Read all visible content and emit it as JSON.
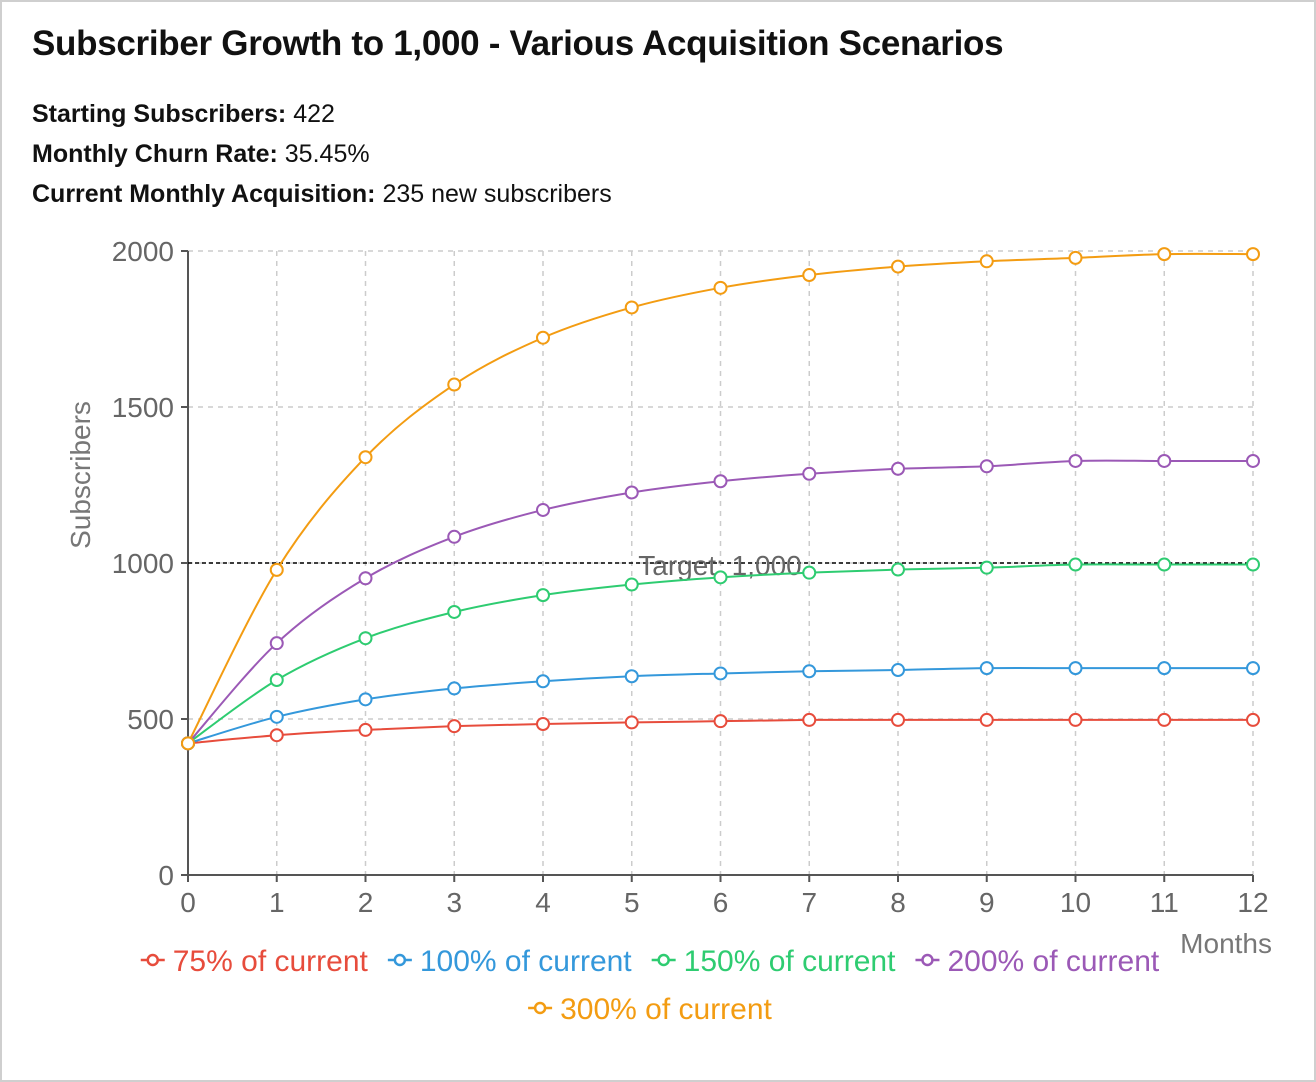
{
  "title": "Subscriber Growth to 1,000 - Various Acquisition Scenarios",
  "info": {
    "starting_label": "Starting Subscribers:",
    "starting_value": "422",
    "churn_label": "Monthly Churn Rate:",
    "churn_value": "35.45%",
    "acq_label": "Current Monthly Acquisition:",
    "acq_value": "235 new subscribers"
  },
  "chart_data": {
    "type": "line",
    "xlabel": "Months",
    "ylabel": "Subscribers",
    "x": [
      0,
      1,
      2,
      3,
      4,
      5,
      6,
      7,
      8,
      9,
      10,
      11,
      12
    ],
    "xlim": [
      0,
      12
    ],
    "ylim": [
      0,
      2000
    ],
    "yticks": [
      0,
      500,
      1000,
      1500,
      2000
    ],
    "grid": true,
    "legend_position": "bottom",
    "reference_line": {
      "y": 1000,
      "label": "Target: 1,000",
      "color": "#000000"
    },
    "series": [
      {
        "name": "75% of current",
        "color": "#e74c3c",
        "values": [
          422,
          448,
          465,
          477,
          484,
          489,
          493,
          497,
          497,
          497,
          497,
          497,
          497
        ]
      },
      {
        "name": "100% of current",
        "color": "#3498db",
        "values": [
          422,
          507,
          563,
          598,
          621,
          637,
          646,
          653,
          657,
          663,
          663,
          663,
          663
        ]
      },
      {
        "name": "150% of current",
        "color": "#2ecc71",
        "values": [
          422,
          625,
          759,
          843,
          897,
          931,
          954,
          969,
          979,
          985,
          995,
          995,
          995
        ]
      },
      {
        "name": "200% of current",
        "color": "#9b59b6",
        "values": [
          422,
          743,
          951,
          1084,
          1170,
          1226,
          1262,
          1286,
          1302,
          1310,
          1327,
          1327,
          1327
        ]
      },
      {
        "name": "300% of current",
        "color": "#f39c12",
        "values": [
          422,
          978,
          1339,
          1572,
          1722,
          1819,
          1882,
          1923,
          1950,
          1967,
          1978,
          1990,
          1990
        ]
      }
    ]
  }
}
